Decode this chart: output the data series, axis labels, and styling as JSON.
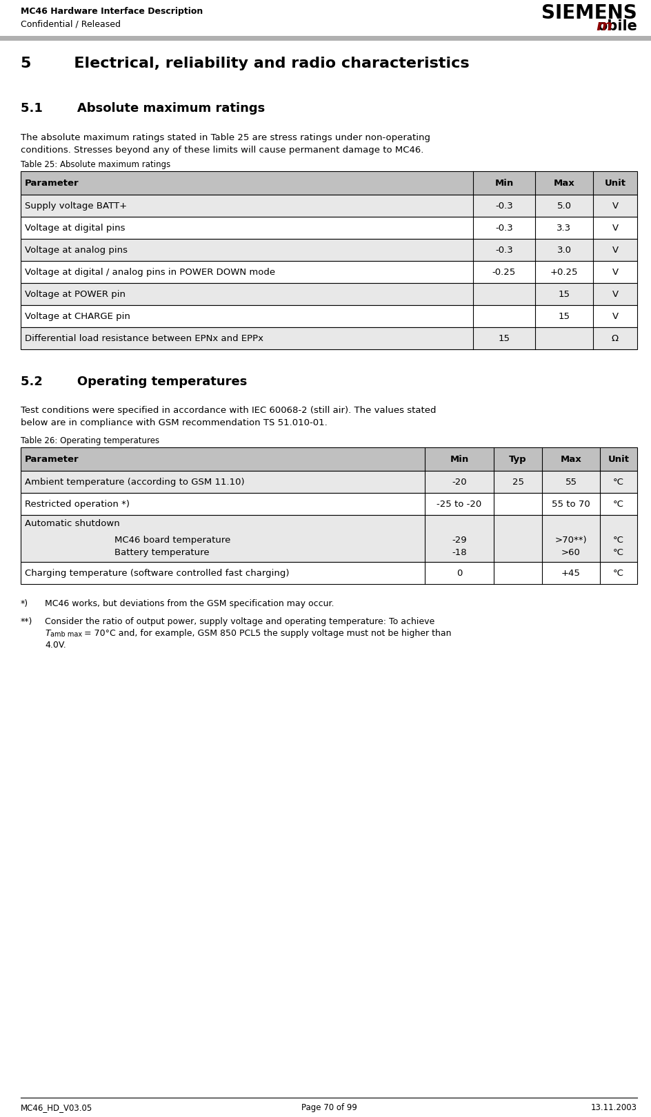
{
  "header_left_line1": "MC46 Hardware Interface Description",
  "header_left_line2": "Confidential / Released",
  "header_right_siemens": "SIEMENS",
  "header_right_mobile_m": "m",
  "header_right_mobile_rest": "obile",
  "siemens_color": "#000000",
  "mobile_m_color": "#8B0000",
  "footer_left": "MC46_HD_V03.05",
  "footer_center": "Page 70 of 99",
  "footer_right": "13.11.2003",
  "section5_title": "5        Electrical, reliability and radio characteristics",
  "section51_title": "5.1        Absolute maximum ratings",
  "section51_body1": "The absolute maximum ratings stated in Table 25 are stress ratings under non-operating",
  "section51_body2": "conditions. Stresses beyond any of these limits will cause permanent damage to MC46.",
  "table25_caption": "Table 25: Absolute maximum ratings",
  "table25_header": [
    "Parameter",
    "Min",
    "Max",
    "Unit"
  ],
  "table25_rows": [
    [
      "Supply voltage BATT+",
      "-0.3",
      "5.0",
      "V"
    ],
    [
      "Voltage at digital pins",
      "-0.3",
      "3.3",
      "V"
    ],
    [
      "Voltage at analog pins",
      "-0.3",
      "3.0",
      "V"
    ],
    [
      "Voltage at digital / analog pins in POWER DOWN mode",
      "-0.25",
      "+0.25",
      "V"
    ],
    [
      "Voltage at POWER pin",
      "",
      "15",
      "V"
    ],
    [
      "Voltage at CHARGE pin",
      "",
      "15",
      "V"
    ],
    [
      "Differential load resistance between EPNx and EPPx",
      "15",
      "",
      "Ω"
    ]
  ],
  "section52_title": "5.2        Operating temperatures",
  "section52_body1": "Test conditions were specified in accordance with IEC 60068-2 (still air). The values stated",
  "section52_body2": "below are in compliance with GSM recommendation TS 51.010-01.",
  "table26_caption": "Table 26: Operating temperatures",
  "table26_header": [
    "Parameter",
    "Min",
    "Typ",
    "Max",
    "Unit"
  ],
  "table26_rows": [
    [
      "Ambient temperature (according to GSM 11.10)",
      "-20",
      "25",
      "55",
      "°C"
    ],
    [
      "Restricted operation *)",
      "-25 to -20",
      "",
      "55 to 70",
      "°C"
    ],
    [
      "Automatic shutdown",
      "-29\n-18",
      "",
      ">70**)\n>60",
      "°C\n°C"
    ],
    [
      "Charging temperature (software controlled fast charging)",
      "0",
      "",
      "+45",
      "°C"
    ]
  ],
  "auto_shutdown_sub1": "MC46 board temperature",
  "auto_shutdown_sub2": "Battery temperature",
  "footnote1_marker": "*)",
  "footnote1_text": "MC46 works, but deviations from the GSM specification may occur.",
  "footnote2_marker": "**)",
  "footnote2_line1": "Consider the ratio of output power, supply voltage and operating temperature: To achieve",
  "footnote2_line2a": "T",
  "footnote2_line2b": "amb max",
  "footnote2_line2c": " = 70°C and, for example, GSM 850 PCL5 the supply voltage must not be higher than",
  "footnote2_line3": "4.0V.",
  "bg_color": "#ffffff",
  "table_header_bg": "#c0c0c0",
  "table_alt_bg": "#e8e8e8",
  "table_border_color": "#000000",
  "header_line_color": "#b0b0b0"
}
